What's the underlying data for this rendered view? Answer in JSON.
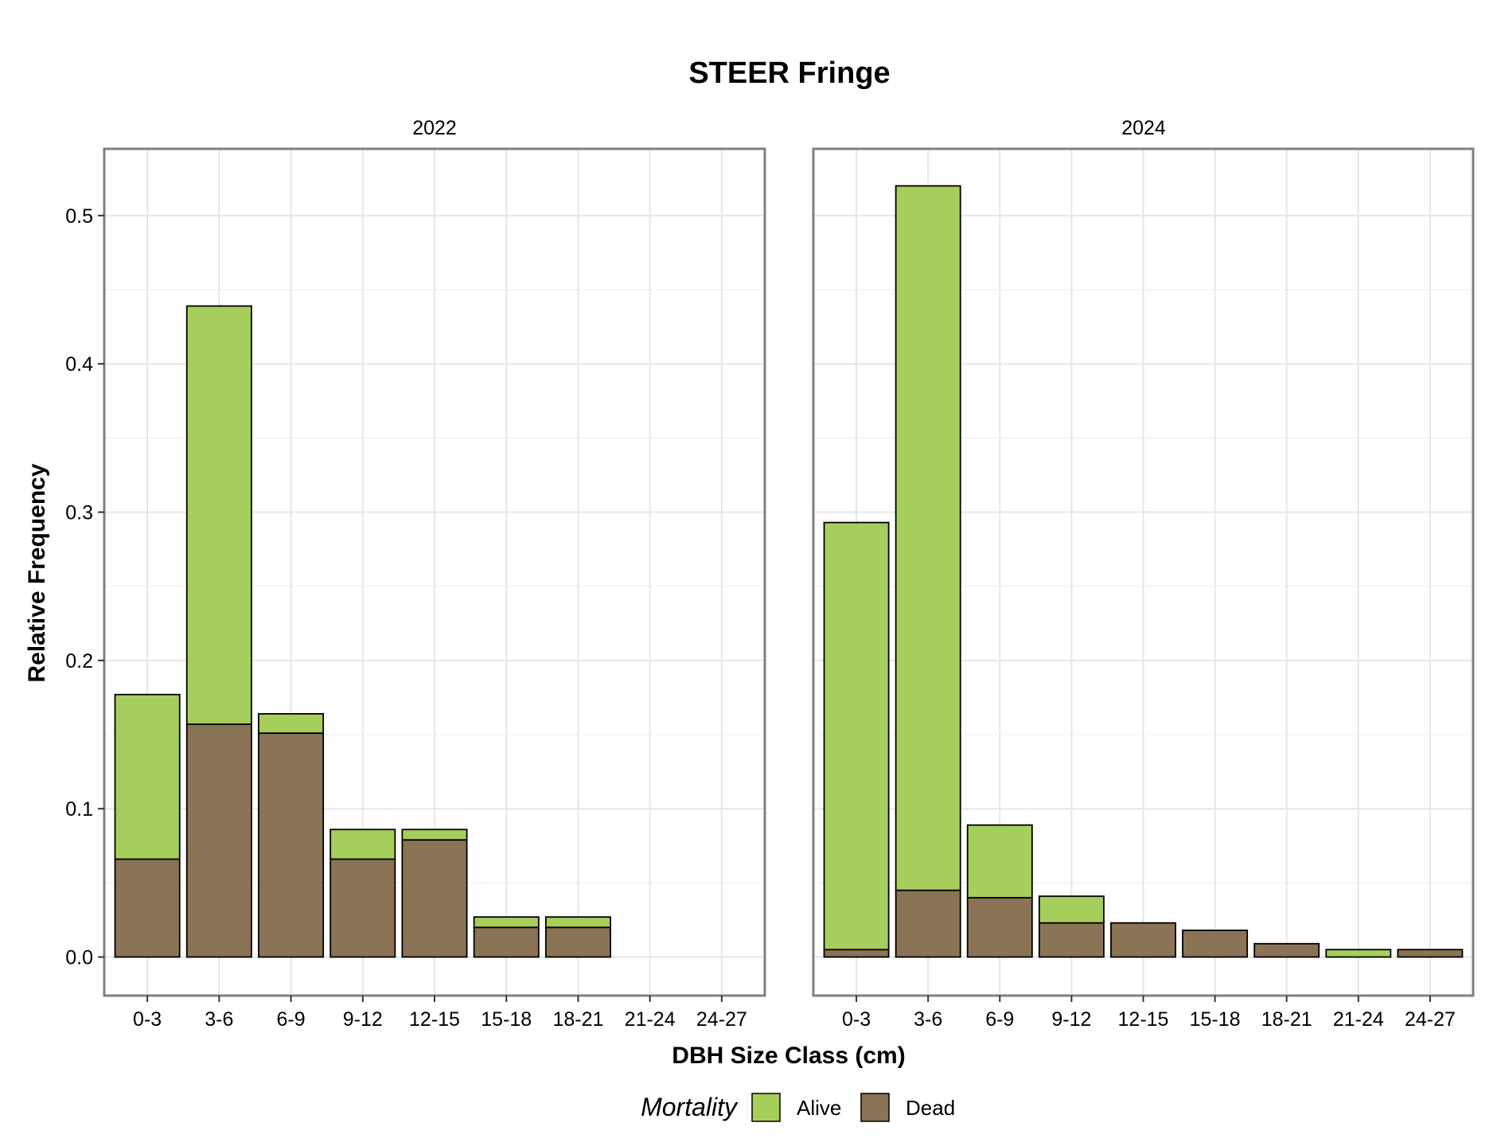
{
  "chart_data": {
    "type": "bar",
    "stacked": true,
    "title": "STEER Fringe",
    "xlabel": "DBH Size Class (cm)",
    "ylabel": "Relative Frequency",
    "ylim": [
      -0.026,
      0.545
    ],
    "yticks": [
      "0.0",
      "0.1",
      "0.2",
      "0.3",
      "0.4",
      "0.5"
    ],
    "categories": [
      "0-3",
      "3-6",
      "6-9",
      "9-12",
      "12-15",
      "15-18",
      "18-21",
      "21-24",
      "24-27"
    ],
    "legend": {
      "title": "Mortality",
      "position": "bottom",
      "entries": [
        {
          "name": "Alive",
          "color": "#A6CE5A"
        },
        {
          "name": "Dead",
          "color": "#8B7355"
        }
      ]
    },
    "grid": true,
    "panels": [
      {
        "label": "2022",
        "series": [
          {
            "name": "Dead",
            "values": [
              0.066,
              0.157,
              0.151,
              0.066,
              0.079,
              0.02,
              0.02,
              0,
              0
            ]
          },
          {
            "name": "Alive",
            "values": [
              0.111,
              0.282,
              0.013,
              0.02,
              0.007,
              0.007,
              0.007,
              0,
              0
            ]
          }
        ]
      },
      {
        "label": "2024",
        "series": [
          {
            "name": "Dead",
            "values": [
              0.005,
              0.045,
              0.04,
              0.023,
              0.023,
              0.018,
              0.009,
              0,
              0.005
            ]
          },
          {
            "name": "Alive",
            "values": [
              0.288,
              0.475,
              0.049,
              0.018,
              0,
              0,
              0,
              0.005,
              0
            ]
          }
        ]
      }
    ]
  }
}
